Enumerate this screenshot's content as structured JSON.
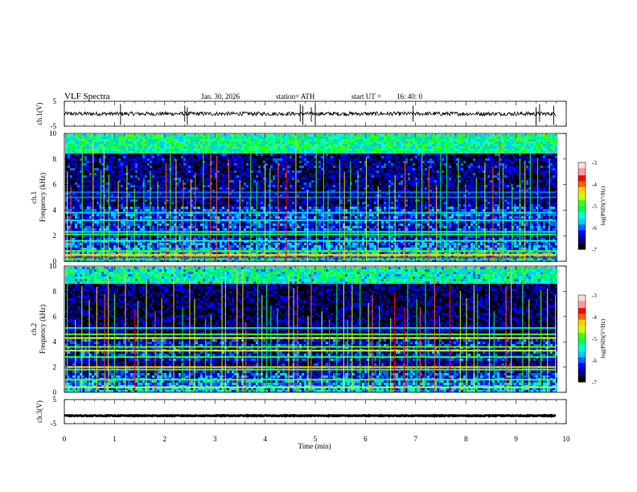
{
  "header": {
    "title": "VLF  Spectra",
    "date": "Jan. 30, 2026",
    "station": "station= ATH",
    "start_label": "start  UT  =",
    "start_value": "16: 40: 0"
  },
  "chart_data": [
    {
      "type": "line",
      "name": "ch1-waveform",
      "ylabel": "ch.1(V)",
      "ylim": [
        -5,
        5
      ],
      "yticks": [
        "5",
        "-5"
      ],
      "xlim": [
        0,
        10
      ],
      "trace_end_min": 9.8,
      "baseline_v": 0,
      "noise_amplitude_v": 0.8,
      "spike_times_min": [
        1.12,
        2.4,
        2.45,
        4.7,
        4.75,
        4.92,
        5.0,
        6.95,
        9.4,
        9.47,
        9.75
      ]
    },
    {
      "type": "heatmap",
      "name": "ch1-spectrogram",
      "ylabel_top": "ch.1",
      "ylabel": "Frequency  (kHz)",
      "ylim": [
        0,
        10
      ],
      "yticks": [
        "10",
        "8",
        "6",
        "4",
        "2",
        "0"
      ],
      "xlim": [
        0,
        10
      ],
      "trace_end_min": 9.8,
      "colorbar": {
        "label": "log(PSD)(V²/Hz)",
        "range": [
          -7,
          -3
        ],
        "ticks": [
          "-3",
          "-4",
          "-5",
          "-6",
          "-7"
        ]
      },
      "background_level": -6.6,
      "high_band_level": -5.3,
      "bands_khz": [
        {
          "f": 0.3,
          "level": -3.8
        },
        {
          "f": 0.5,
          "level": -4.2
        },
        {
          "f": 0.8,
          "level": -4.8
        },
        {
          "f": 1.6,
          "level": -5.5
        },
        {
          "f": 2.1,
          "level": -5.2
        },
        {
          "f": 2.3,
          "level": -5.4
        },
        {
          "f": 3.2,
          "level": -5.6
        },
        {
          "f": 3.8,
          "level": -5.8
        },
        {
          "f": 5.0,
          "level": -6.0
        },
        {
          "f": 5.4,
          "level": -6.0
        }
      ]
    },
    {
      "type": "heatmap",
      "name": "ch2-spectrogram",
      "ylabel_top": "ch.2",
      "ylabel": "Frequency  (kHz)",
      "ylim": [
        0,
        10
      ],
      "yticks": [
        "10",
        "8",
        "6",
        "4",
        "2",
        "0"
      ],
      "xlim": [
        0,
        10
      ],
      "trace_end_min": 9.8,
      "colorbar": {
        "label": "log(PSD)(V²/Hz)",
        "range": [
          -7,
          -3
        ],
        "ticks": [
          "-3",
          "-4",
          "-5",
          "-6",
          "-7"
        ]
      },
      "background_level": -6.7,
      "high_band_level": -5.4,
      "bands_khz": [
        {
          "f": 0.4,
          "level": -4.6
        },
        {
          "f": 1.0,
          "level": -5.0
        },
        {
          "f": 1.8,
          "level": -4.9
        },
        {
          "f": 2.0,
          "level": -4.3
        },
        {
          "f": 2.8,
          "level": -5.2
        },
        {
          "f": 3.3,
          "level": -4.7
        },
        {
          "f": 3.6,
          "level": -5.0
        },
        {
          "f": 4.3,
          "level": -4.6
        },
        {
          "f": 4.6,
          "level": -4.8
        },
        {
          "f": 5.1,
          "level": -5.6
        }
      ]
    },
    {
      "type": "line",
      "name": "ch3-waveform",
      "ylabel": "ch.3(V)",
      "ylim": [
        -5,
        5
      ],
      "yticks": [
        "5",
        "-5"
      ],
      "xlim": [
        0,
        10
      ],
      "trace_end_min": 9.8,
      "baseline_v": -1.7,
      "noise_amplitude_v": 0.15,
      "spike_times_min": []
    }
  ],
  "xaxis": {
    "label": "Time  (min)",
    "ticks": [
      "0",
      "1",
      "2",
      "3",
      "4",
      "5",
      "6",
      "7",
      "8",
      "9",
      "10"
    ]
  },
  "colors": {
    "colormap": [
      "#000000",
      "#00008b",
      "#0000ff",
      "#0066ff",
      "#00ccff",
      "#00ffcc",
      "#00ff44",
      "#44ff00",
      "#ccff00",
      "#ffd000",
      "#ff6000",
      "#ff0000",
      "#ff9999",
      "#ffdddd"
    ],
    "trace": "#000000"
  }
}
